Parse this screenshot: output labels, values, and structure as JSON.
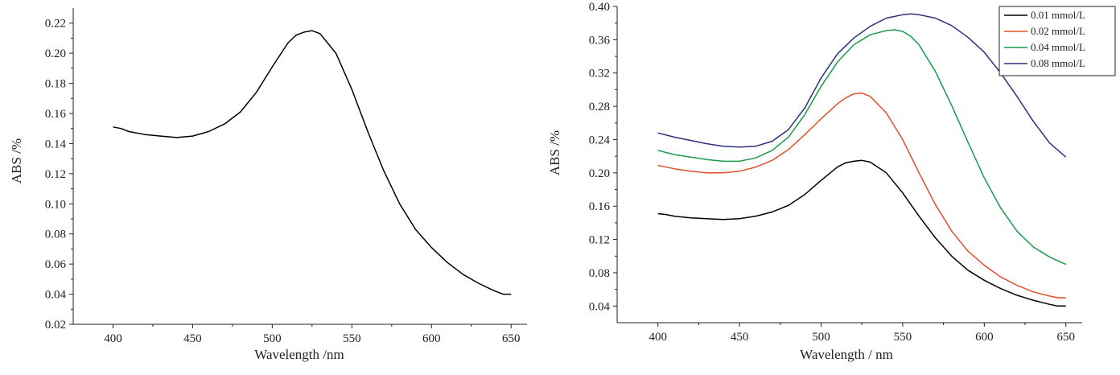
{
  "chart_data": [
    {
      "type": "line",
      "title": "",
      "xlabel": "Wavelength /nm",
      "ylabel": "ABS /%",
      "xlim": [
        375,
        660
      ],
      "ylim": [
        0.02,
        0.23
      ],
      "xticks": [
        "400",
        "450",
        "500",
        "550",
        "600",
        "650"
      ],
      "yticks": [
        "0.02",
        "0.04",
        "0.06",
        "0.08",
        "0.10",
        "0.12",
        "0.14",
        "0.16",
        "0.18",
        "0.20",
        "0.22"
      ],
      "grid": false,
      "series": [
        {
          "color": "#000000",
          "x": [
            400,
            405,
            410,
            420,
            430,
            440,
            450,
            460,
            470,
            480,
            490,
            500,
            510,
            515,
            520,
            525,
            530,
            540,
            550,
            560,
            570,
            580,
            590,
            600,
            610,
            620,
            630,
            640,
            645,
            650
          ],
          "y": [
            0.151,
            0.15,
            0.148,
            0.146,
            0.145,
            0.144,
            0.145,
            0.148,
            0.153,
            0.161,
            0.174,
            0.191,
            0.207,
            0.212,
            0.214,
            0.215,
            0.213,
            0.2,
            0.176,
            0.148,
            0.122,
            0.1,
            0.083,
            0.071,
            0.061,
            0.053,
            0.047,
            0.042,
            0.04,
            0.04
          ]
        }
      ]
    },
    {
      "type": "line",
      "title": "",
      "xlabel": "Wavelength / nm",
      "ylabel": "ABS /%",
      "xlim": [
        375,
        660
      ],
      "ylim": [
        0.02,
        0.4
      ],
      "xticks": [
        "400",
        "450",
        "500",
        "550",
        "600",
        "650"
      ],
      "yticks": [
        "0.04",
        "0.08",
        "0.12",
        "0.16",
        "0.20",
        "0.24",
        "0.28",
        "0.32",
        "0.36",
        "0.40"
      ],
      "grid": false,
      "legend": "top-right",
      "series": [
        {
          "name": "0.01 mmol/L",
          "color": "#000000",
          "x": [
            400,
            405,
            410,
            420,
            430,
            440,
            450,
            460,
            470,
            480,
            490,
            500,
            510,
            515,
            520,
            525,
            530,
            540,
            550,
            560,
            570,
            580,
            590,
            600,
            610,
            620,
            630,
            640,
            645,
            650
          ],
          "y": [
            0.151,
            0.15,
            0.148,
            0.146,
            0.145,
            0.144,
            0.145,
            0.148,
            0.153,
            0.161,
            0.174,
            0.191,
            0.207,
            0.212,
            0.214,
            0.215,
            0.213,
            0.2,
            0.176,
            0.148,
            0.122,
            0.1,
            0.083,
            0.071,
            0.061,
            0.053,
            0.047,
            0.042,
            0.04,
            0.04
          ]
        },
        {
          "name": "0.02 mmol/L",
          "color": "#e0502a",
          "x": [
            400,
            410,
            420,
            430,
            440,
            450,
            460,
            470,
            480,
            490,
            500,
            510,
            515,
            520,
            525,
            530,
            540,
            550,
            560,
            570,
            580,
            590,
            600,
            610,
            620,
            630,
            640,
            645,
            650
          ],
          "y": [
            0.209,
            0.205,
            0.202,
            0.2,
            0.2,
            0.202,
            0.207,
            0.215,
            0.228,
            0.246,
            0.265,
            0.283,
            0.29,
            0.295,
            0.296,
            0.292,
            0.272,
            0.24,
            0.2,
            0.162,
            0.13,
            0.106,
            0.089,
            0.075,
            0.065,
            0.057,
            0.052,
            0.05,
            0.05
          ]
        },
        {
          "name": "0.04 mmol/L",
          "color": "#1a9a4a",
          "x": [
            400,
            410,
            420,
            430,
            440,
            450,
            460,
            470,
            480,
            490,
            500,
            510,
            520,
            530,
            540,
            545,
            550,
            555,
            560,
            570,
            580,
            590,
            600,
            610,
            620,
            630,
            640,
            650
          ],
          "y": [
            0.227,
            0.222,
            0.219,
            0.216,
            0.214,
            0.214,
            0.218,
            0.227,
            0.243,
            0.27,
            0.304,
            0.333,
            0.354,
            0.366,
            0.371,
            0.372,
            0.37,
            0.364,
            0.354,
            0.322,
            0.281,
            0.237,
            0.194,
            0.158,
            0.13,
            0.111,
            0.099,
            0.09
          ]
        },
        {
          "name": "0.08 mmol/L",
          "color": "#2b2f7c",
          "x": [
            400,
            410,
            420,
            430,
            440,
            450,
            460,
            470,
            480,
            490,
            500,
            510,
            520,
            530,
            540,
            550,
            555,
            560,
            570,
            580,
            590,
            600,
            610,
            620,
            630,
            640,
            650
          ],
          "y": [
            0.248,
            0.243,
            0.239,
            0.235,
            0.232,
            0.231,
            0.232,
            0.238,
            0.252,
            0.278,
            0.314,
            0.343,
            0.362,
            0.376,
            0.386,
            0.39,
            0.391,
            0.39,
            0.386,
            0.377,
            0.363,
            0.345,
            0.32,
            0.292,
            0.262,
            0.236,
            0.219
          ]
        }
      ]
    }
  ]
}
